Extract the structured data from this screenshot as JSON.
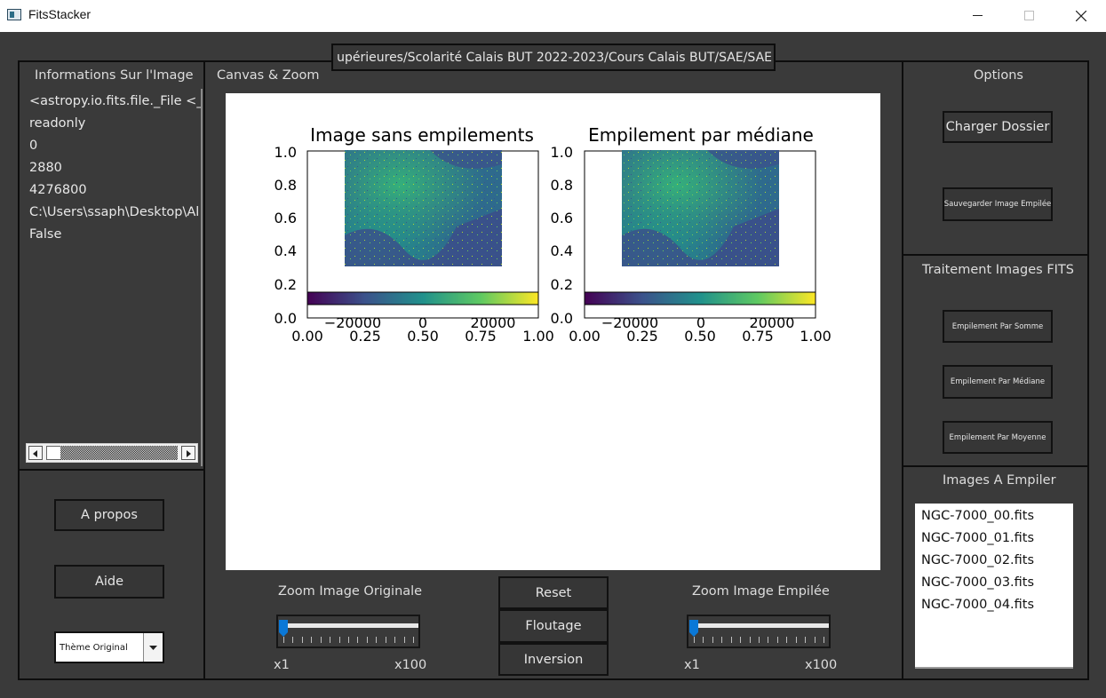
{
  "window": {
    "title": "FitsStacker",
    "controls": {
      "minimize": "minimize-icon",
      "maximize": "maximize-icon",
      "close": "close-icon"
    }
  },
  "path_field": {
    "value": "upérieures/Scolarité Calais BUT 2022-2023/Cours Calais BUT/SAE/SAE"
  },
  "info_panel": {
    "title": "Informations Sur l'Image",
    "lines": [
      "<astropy.io.fits.file._File <_i",
      "readonly",
      "0",
      "2880",
      "4276800",
      "C:\\Users\\ssaph\\Desktop\\Al",
      "False"
    ]
  },
  "canvas_panel": {
    "title": "Canvas & Zoom"
  },
  "plots": {
    "left_title": "Image sans empilements",
    "right_title": "Empilement par médiane",
    "y_ticks": [
      "1.0",
      "0.8",
      "0.6",
      "0.4",
      "0.2",
      "0.0"
    ],
    "x_ticks": [
      "0.00",
      "0.25",
      "0.50",
      "0.75",
      "1.00"
    ],
    "colorbar_ticks": [
      "−20000",
      "0",
      "20000"
    ]
  },
  "zoom": {
    "original_label": "Zoom Image Originale",
    "stacked_label": "Zoom Image Empilée",
    "min_label": "x1",
    "max_label": "x100",
    "original_value": 1,
    "stacked_value": 1
  },
  "center_buttons": {
    "reset": "Reset",
    "blur": "Floutage",
    "invert": "Inversion"
  },
  "left_buttons": {
    "about": "A propos",
    "help": "Aide",
    "theme_selected": "Thème Original"
  },
  "options_panel": {
    "title": "Options",
    "load_folder": "Charger Dossier",
    "save_stacked": "Sauvegarder Image Empilée"
  },
  "processing_panel": {
    "title": "Traitement Images FITS",
    "sum": "Empilement Par Somme",
    "median": "Empilement Par Médiane",
    "mean": "Empilement Par Moyenne"
  },
  "stack_panel": {
    "title": "Images A Empiler",
    "files": [
      "NGC-7000_00.fits",
      "NGC-7000_01.fits",
      "NGC-7000_02.fits",
      "NGC-7000_03.fits",
      "NGC-7000_04.fits"
    ]
  },
  "colors": {
    "background": "#3a3a3a",
    "panel_border": "#0d0d0d",
    "slider_handle": "#0a78d7",
    "colormap": [
      "#440154",
      "#3b528b",
      "#21918c",
      "#5ec962",
      "#fde725"
    ]
  }
}
